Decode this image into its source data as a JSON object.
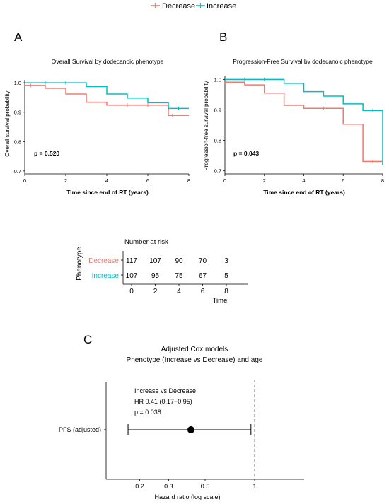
{
  "colors": {
    "decrease": "#F8766D",
    "increase": "#00BFC4",
    "axis": "#000000",
    "grid_ref": "#777777"
  },
  "legend": {
    "items": [
      {
        "label": "Decrease",
        "color": "#F8766D"
      },
      {
        "label": "Increase",
        "color": "#00BFC4"
      }
    ]
  },
  "panel_a": {
    "letter": "A"
  },
  "panel_b": {
    "letter": "B"
  },
  "panel_c": {
    "letter": "C"
  },
  "chart_data": [
    {
      "type": "line",
      "step": true,
      "title": "Overall Survival by dodecanoic phenotype",
      "xlabel": "Time since end of RT (years)",
      "ylabel": "Overall survival probability",
      "xlim": [
        0,
        8
      ],
      "ylim": [
        0.69,
        1.01
      ],
      "xticks": [
        0,
        2,
        4,
        6,
        8
      ],
      "yticks": [
        0.7,
        0.8,
        0.9,
        1.0
      ],
      "ytick_labels": [
        "0.7",
        "0.8",
        "0.9",
        "1.0"
      ],
      "annotation": "p = 0.520",
      "series": [
        {
          "name": "Decrease",
          "color": "#F8766D",
          "x": [
            0,
            1,
            2,
            3,
            4,
            7,
            8
          ],
          "y": [
            0.991,
            0.981,
            0.962,
            0.934,
            0.924,
            0.889,
            0.889
          ],
          "censors": [
            [
              0.3,
              0.991
            ],
            [
              5,
              0.924
            ],
            [
              6,
              0.924
            ],
            [
              7.2,
              0.889
            ]
          ]
        },
        {
          "name": "Increase",
          "color": "#00BFC4",
          "x": [
            0,
            3,
            4,
            5,
            6,
            7,
            8
          ],
          "y": [
            1.0,
            0.987,
            0.962,
            0.948,
            0.932,
            0.913,
            0.913
          ],
          "censors": [
            [
              1,
              1.0
            ],
            [
              2,
              1.0
            ],
            [
              7.5,
              0.913
            ]
          ]
        }
      ]
    },
    {
      "type": "line",
      "step": true,
      "title": "Progression-Free Survival by dodecanoic phenotype",
      "xlabel": "Time since end of RT (years)",
      "ylabel": "Progression-free survival probability",
      "xlim": [
        0,
        8
      ],
      "ylim": [
        0.69,
        1.01
      ],
      "xticks": [
        0,
        2,
        4,
        6,
        8
      ],
      "yticks": [
        0.7,
        0.8,
        0.9,
        1.0
      ],
      "ytick_labels": [
        "0.7",
        "0.8",
        "0.9",
        "1.0"
      ],
      "annotation": "p = 0.043",
      "series": [
        {
          "name": "Decrease",
          "color": "#F8766D",
          "x": [
            0,
            1,
            2,
            3,
            4,
            6,
            7,
            8
          ],
          "y": [
            0.991,
            0.982,
            0.955,
            0.915,
            0.905,
            0.853,
            0.731,
            0.72
          ],
          "censors": [
            [
              0.3,
              0.991
            ],
            [
              5,
              0.905
            ],
            [
              7.5,
              0.731
            ]
          ]
        },
        {
          "name": "Increase",
          "color": "#00BFC4",
          "x": [
            0,
            3,
            4,
            5,
            6,
            7,
            8
          ],
          "y": [
            1.0,
            0.987,
            0.96,
            0.945,
            0.92,
            0.898,
            0.72
          ],
          "censors": [
            [
              1,
              1.0
            ],
            [
              2,
              1.0
            ],
            [
              7.5,
              0.898
            ]
          ]
        }
      ]
    },
    {
      "type": "table",
      "title": "Number at risk",
      "ylabel": "Phenotype",
      "xlabel": "Time",
      "columns": [
        0,
        2,
        4,
        6,
        8
      ],
      "rows": [
        {
          "name": "Decrease",
          "color": "#F8766D",
          "values": [
            "117",
            "107",
            "90",
            "70",
            "3"
          ]
        },
        {
          "name": "Increase",
          "color": "#00BFC4",
          "values": [
            "107",
            "95",
            "75",
            "67",
            "5"
          ]
        }
      ]
    },
    {
      "type": "scatter",
      "subtype": "forest",
      "title": "Adjusted Cox models",
      "subtitle": "Phenotype (Increase vs Decrease) and age",
      "xlabel": "Hazard ratio (log scale)",
      "xscale": "log",
      "xlim": [
        0.125,
        2.0
      ],
      "xticks": [
        0.2,
        0.3,
        0.5,
        1
      ],
      "xtick_labels": [
        "0.2",
        "0.3",
        "0.5",
        "1"
      ],
      "reference_line": 1,
      "rows": [
        {
          "label": "PFS (adjusted)",
          "hr": 0.41,
          "lower": 0.17,
          "upper": 0.95
        }
      ],
      "annotation_lines": [
        "Increase vs Decrease",
        "HR 0.41 (0.17−0.95)",
        "p = 0.038"
      ]
    }
  ]
}
